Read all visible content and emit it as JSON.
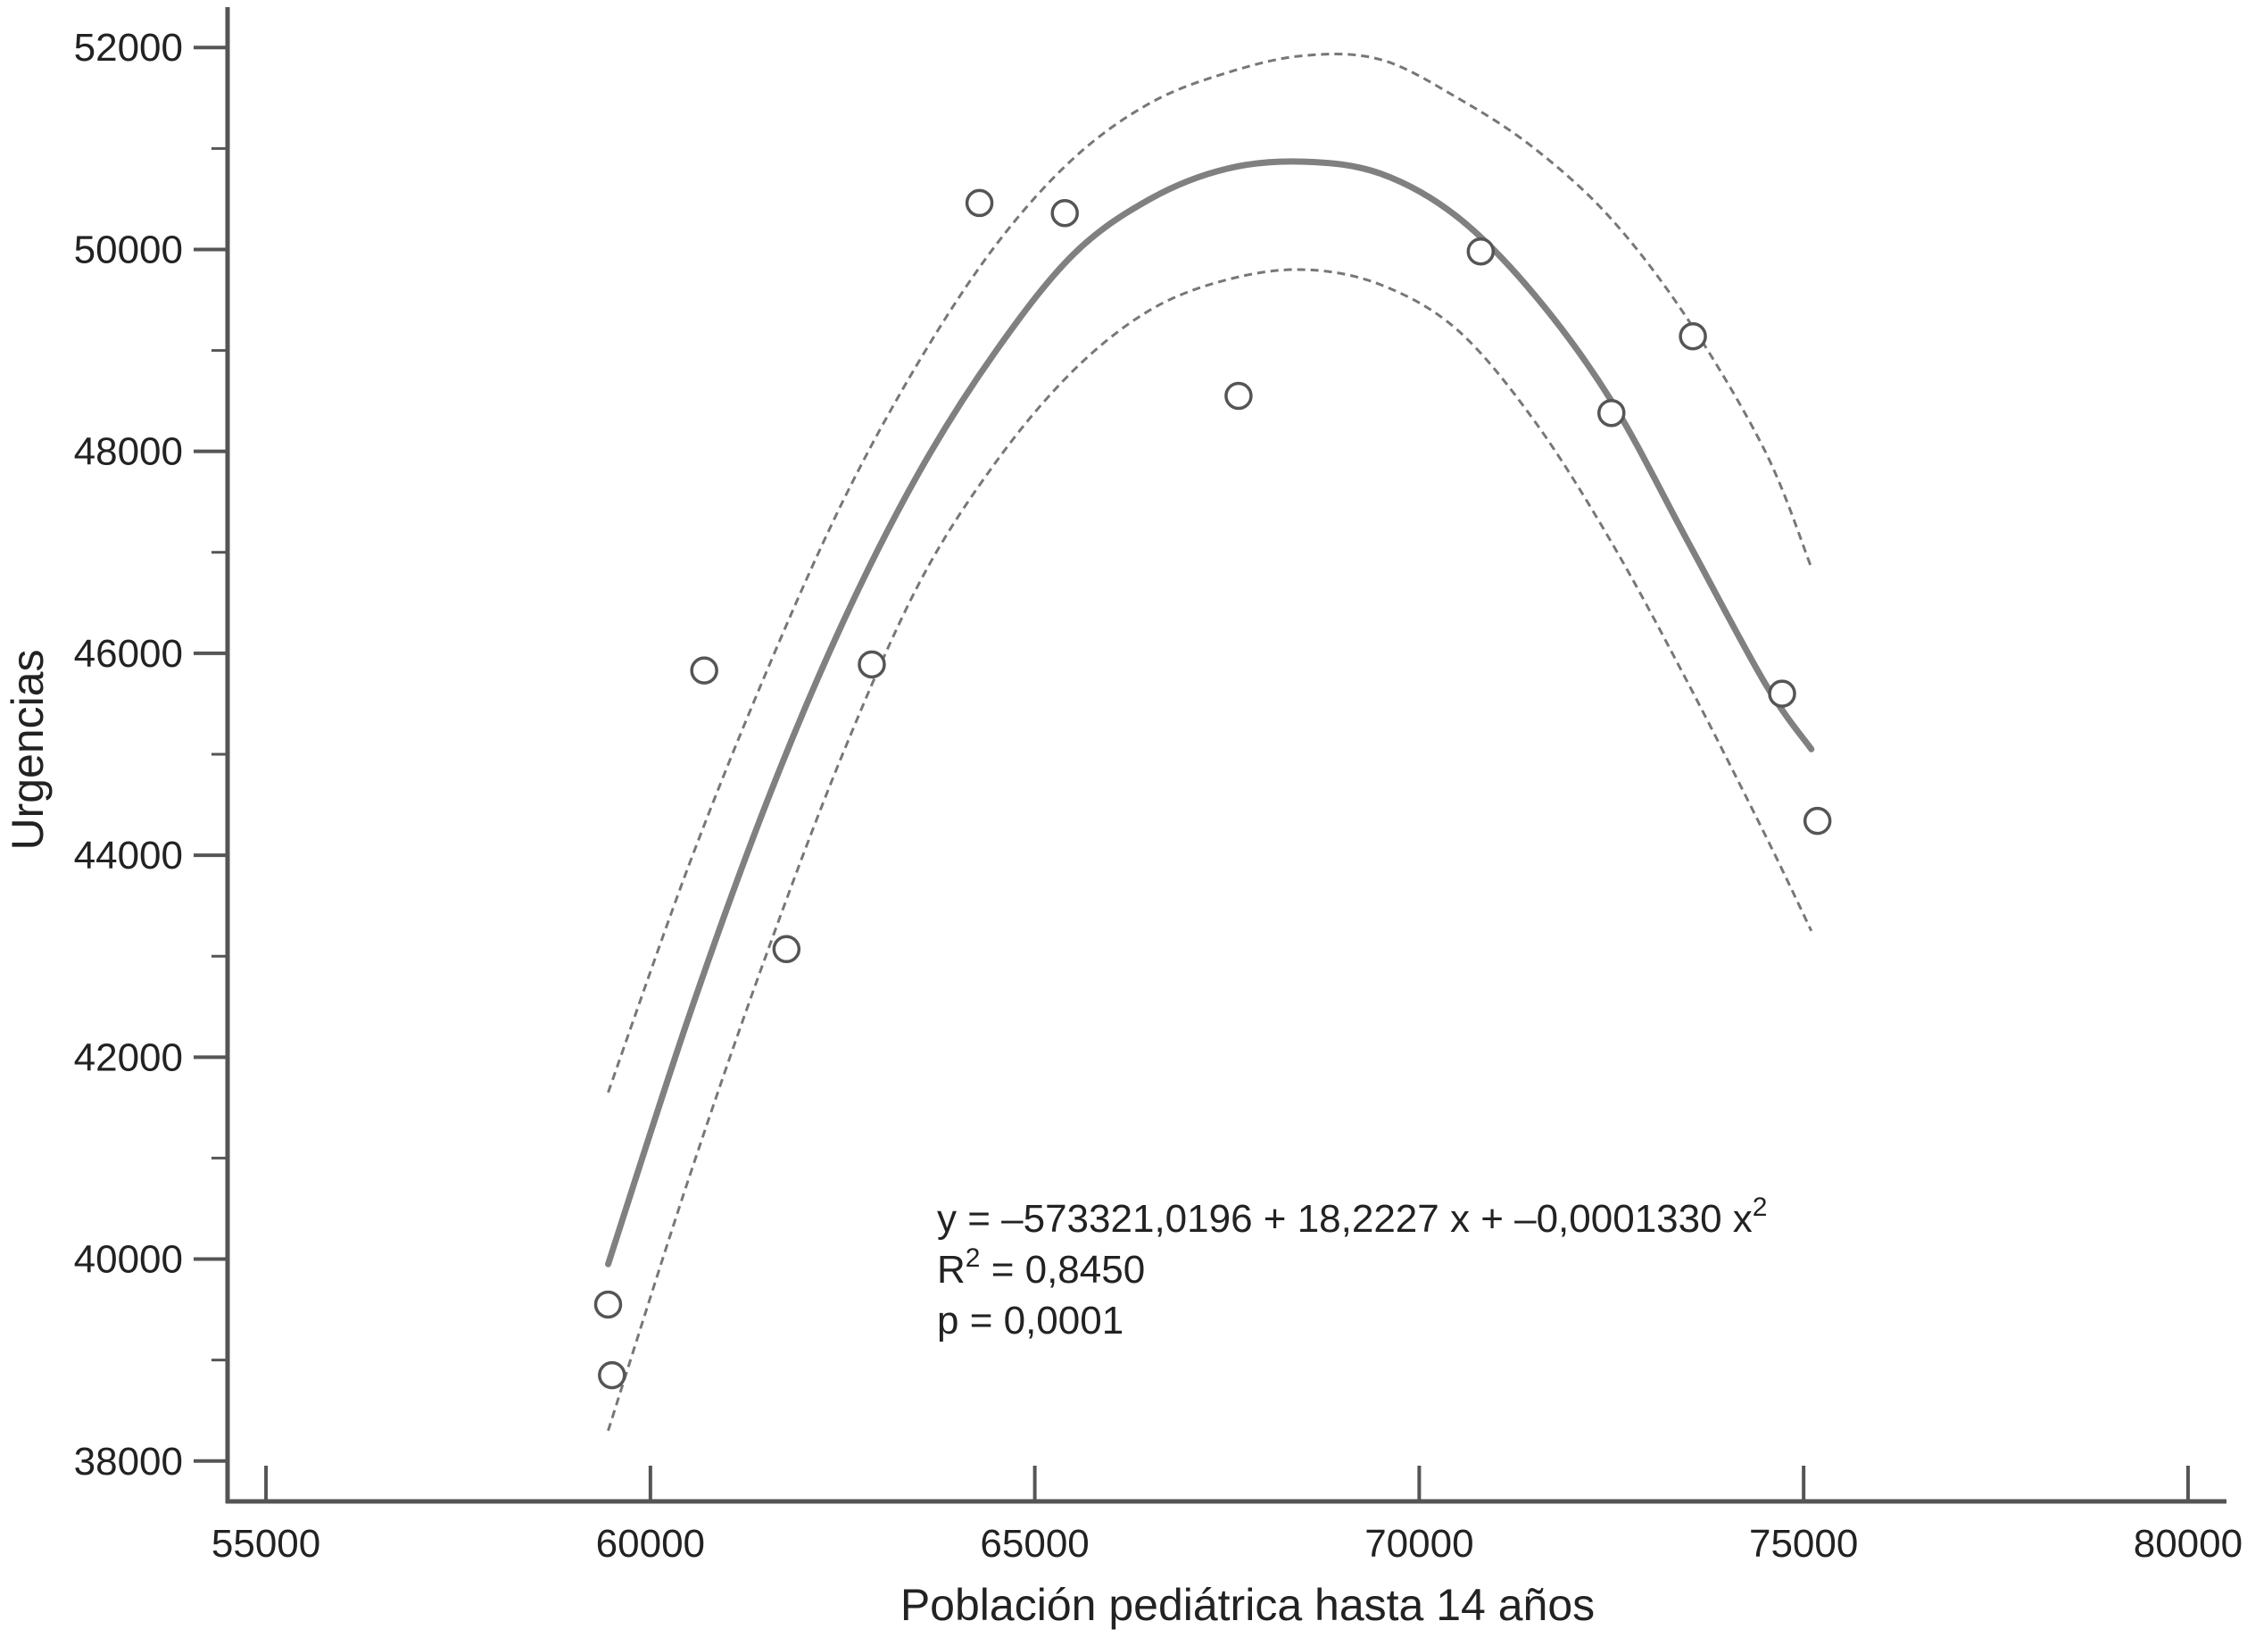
{
  "chart_data": {
    "type": "scatter",
    "title": "",
    "xlabel": "Población pediátrica hasta 14 años",
    "ylabel": "Urgencias",
    "xlim": [
      54500,
      80500
    ],
    "ylim": [
      37600,
      52400
    ],
    "x_ticks": [
      55000,
      60000,
      65000,
      70000,
      75000,
      80000
    ],
    "x_tick_labels": [
      "55000",
      "60000",
      "65000",
      "70000",
      "75000",
      "80000"
    ],
    "y_major_ticks": [
      38000,
      40000,
      42000,
      44000,
      46000,
      48000,
      50000,
      52000
    ],
    "y_tick_labels": [
      "38000",
      "40000",
      "42000",
      "44000",
      "46000",
      "48000",
      "50000",
      "52000"
    ],
    "y_minor_ticks": [
      39000,
      41000,
      43000,
      45000,
      47000,
      49000,
      51000
    ],
    "grid": false,
    "legend": "none",
    "points": [
      {
        "x": 59450,
        "y": 39550
      },
      {
        "x": 59500,
        "y": 38850
      },
      {
        "x": 60700,
        "y": 45830
      },
      {
        "x": 61770,
        "y": 43070
      },
      {
        "x": 62880,
        "y": 45890
      },
      {
        "x": 64280,
        "y": 50460
      },
      {
        "x": 65390,
        "y": 50360
      },
      {
        "x": 67650,
        "y": 48550
      },
      {
        "x": 70800,
        "y": 49980
      },
      {
        "x": 72500,
        "y": 48380
      },
      {
        "x": 73560,
        "y": 49140
      },
      {
        "x": 74720,
        "y": 45600
      },
      {
        "x": 75180,
        "y": 44340
      }
    ],
    "fit": {
      "x": [
        59450,
        60500,
        61500,
        62500,
        63500,
        64500,
        65500,
        66500,
        67500,
        68500,
        69500,
        70500,
        71500,
        72500,
        73500,
        74500,
        75100
      ],
      "y": [
        39950,
        42400,
        44500,
        46300,
        47800,
        49000,
        49950,
        50500,
        50800,
        50870,
        50750,
        50320,
        49550,
        48500,
        47100,
        45700,
        45050
      ]
    },
    "upper_band": {
      "x": [
        59450,
        60500,
        61500,
        62500,
        63500,
        64500,
        65500,
        66500,
        67500,
        68500,
        69500,
        70500,
        71500,
        72500,
        73500,
        74500,
        75100
      ],
      "y": [
        41650,
        43900,
        45800,
        47500,
        48900,
        50050,
        50900,
        51450,
        51750,
        51920,
        51880,
        51500,
        51000,
        50300,
        49300,
        48000,
        46850
      ]
    },
    "lower_band": {
      "x": [
        59450,
        60500,
        61500,
        62500,
        63500,
        64500,
        65500,
        66500,
        67500,
        68500,
        69500,
        70500,
        71500,
        72500,
        73500,
        74500,
        75100
      ],
      "y": [
        38300,
        40800,
        43000,
        45000,
        46700,
        47900,
        48800,
        49400,
        49700,
        49800,
        49650,
        49200,
        48300,
        47100,
        45700,
        44200,
        43250
      ]
    },
    "annotation": {
      "equation_prefix": "y = –573321,0196 + 18,2227 x + –0,0001330 x",
      "equation_sup": "2",
      "r2_prefix": "R",
      "r2_sup": "2",
      "r2_value": " = 0,8450",
      "p_value": "p = 0,0001"
    },
    "colors": {
      "axis": "#555555",
      "fit_line": "#808080",
      "band_line": "#777777",
      "point_stroke": "#555555",
      "text": "#222222"
    }
  }
}
